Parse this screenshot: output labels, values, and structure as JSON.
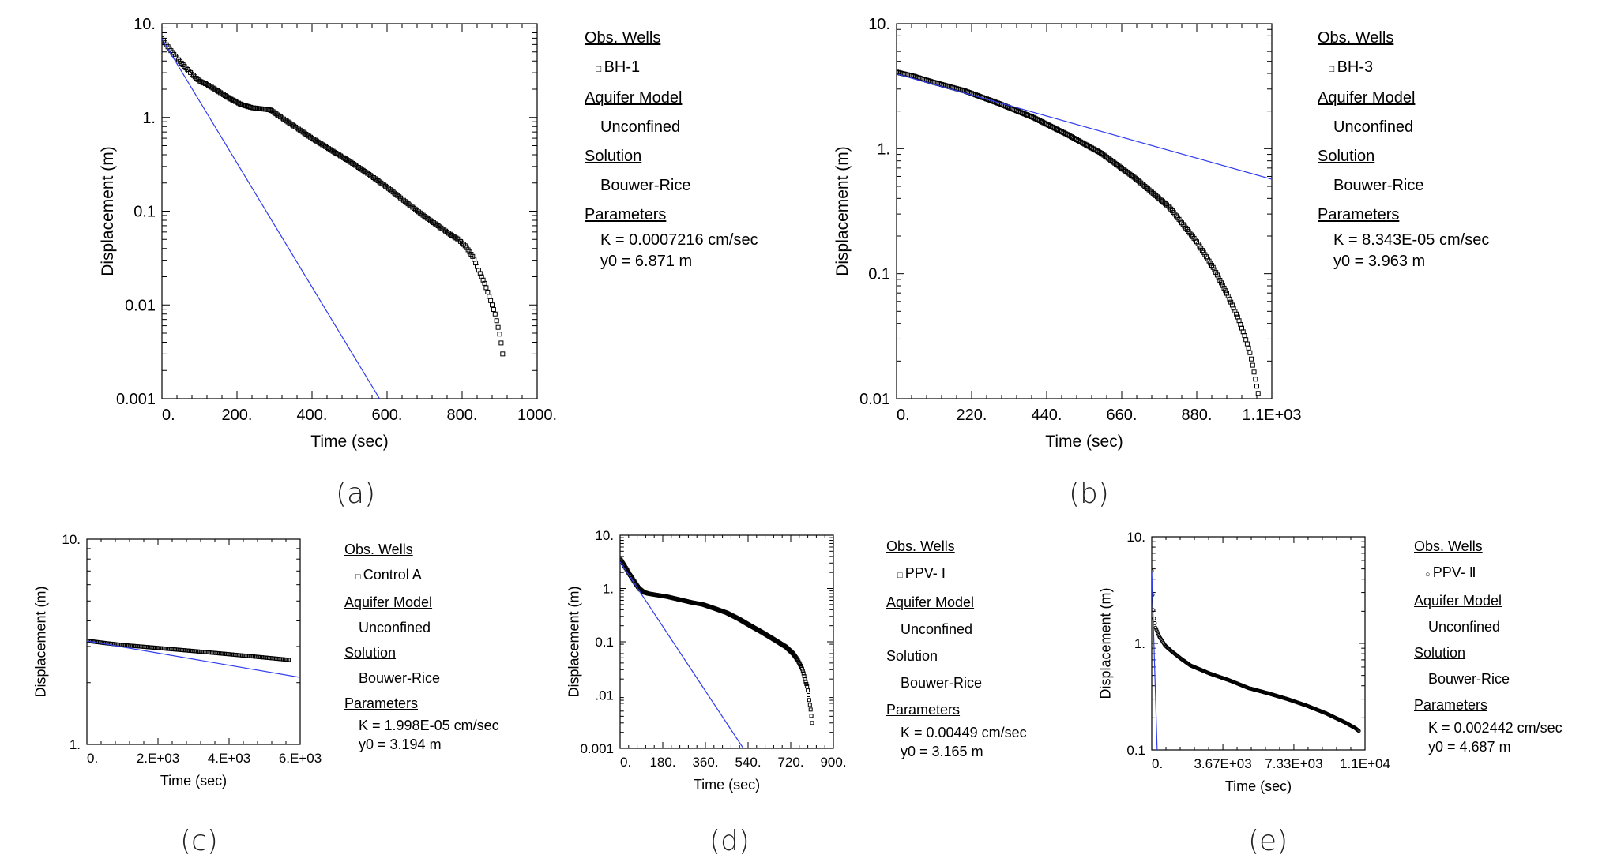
{
  "figure": {
    "captions": [
      "(a)",
      "(b)",
      "(c)",
      "(d)",
      "(e)"
    ]
  },
  "colors": {
    "fit_line": "#2f3cf0",
    "data": "#000000",
    "frame": "#000000"
  },
  "legend_labels": {
    "obs_wells": "Obs. Wells",
    "aquifer_model": "Aquifer Model",
    "solution": "Solution",
    "parameters": "Parameters"
  },
  "chart_data": [
    {
      "id": "a",
      "type": "scatter",
      "yscale": "log",
      "xlabel": "Time (sec)",
      "ylabel": "Displacement (m)",
      "xlim": [
        0,
        1000
      ],
      "ylim": [
        0.001,
        10
      ],
      "xticks": [
        0,
        200,
        400,
        600,
        800,
        1000
      ],
      "xtick_labels": [
        "0.",
        "200.",
        "400.",
        "600.",
        "800.",
        "1000."
      ],
      "yticks": [
        0.001,
        0.01,
        0.1,
        1,
        10
      ],
      "ytick_labels": [
        "0.001",
        "0.01",
        "0.1",
        "1.",
        "10."
      ],
      "observed": [
        [
          0,
          6.9
        ],
        [
          20,
          5.4
        ],
        [
          40,
          4.3
        ],
        [
          60,
          3.5
        ],
        [
          80,
          2.9
        ],
        [
          100,
          2.45
        ],
        [
          120,
          2.25
        ],
        [
          150,
          1.9
        ],
        [
          180,
          1.6
        ],
        [
          210,
          1.38
        ],
        [
          240,
          1.27
        ],
        [
          270,
          1.23
        ],
        [
          290,
          1.2
        ],
        [
          310,
          1.05
        ],
        [
          350,
          0.82
        ],
        [
          400,
          0.6
        ],
        [
          450,
          0.45
        ],
        [
          500,
          0.34
        ],
        [
          550,
          0.25
        ],
        [
          600,
          0.18
        ],
        [
          650,
          0.125
        ],
        [
          700,
          0.088
        ],
        [
          740,
          0.068
        ],
        [
          770,
          0.056
        ],
        [
          790,
          0.05
        ],
        [
          810,
          0.042
        ],
        [
          830,
          0.032
        ],
        [
          845,
          0.023
        ],
        [
          860,
          0.017
        ],
        [
          870,
          0.013
        ],
        [
          880,
          0.01
        ],
        [
          888,
          0.008
        ],
        [
          895,
          0.006
        ],
        [
          902,
          0.0045
        ],
        [
          908,
          0.003
        ]
      ],
      "fit_line": [
        [
          0,
          6.871
        ],
        [
          580,
          0.001
        ]
      ],
      "legend": {
        "obs_wells": "BH-1",
        "aquifer_model": "Unconfined",
        "solution": "Bouwer-Rice",
        "param_k": "K  = 0.0007216 cm/sec",
        "param_y0": "y0 = 6.871 m"
      }
    },
    {
      "id": "b",
      "type": "scatter",
      "yscale": "log",
      "xlabel": "Time (sec)",
      "ylabel": "Displacement (m)",
      "xlim": [
        0,
        1100
      ],
      "ylim": [
        0.01,
        10
      ],
      "xticks": [
        0,
        220,
        440,
        660,
        880,
        1100
      ],
      "xtick_labels": [
        "0.",
        "220.",
        "440.",
        "660.",
        "880.",
        "1.1E+03"
      ],
      "yticks": [
        0.01,
        0.1,
        1,
        10
      ],
      "ytick_labels": [
        "0.01",
        "0.1",
        "1.",
        "10."
      ],
      "observed": [
        [
          0,
          4.1
        ],
        [
          50,
          3.8
        ],
        [
          100,
          3.45
        ],
        [
          200,
          2.9
        ],
        [
          300,
          2.3
        ],
        [
          400,
          1.78
        ],
        [
          500,
          1.3
        ],
        [
          600,
          0.92
        ],
        [
          700,
          0.58
        ],
        [
          800,
          0.34
        ],
        [
          880,
          0.18
        ],
        [
          930,
          0.11
        ],
        [
          970,
          0.068
        ],
        [
          1000,
          0.045
        ],
        [
          1020,
          0.032
        ],
        [
          1035,
          0.024
        ],
        [
          1045,
          0.018
        ],
        [
          1055,
          0.013
        ],
        [
          1063,
          0.01
        ]
      ],
      "fit_line": [
        [
          0,
          3.963
        ],
        [
          1100,
          0.57
        ]
      ],
      "legend": {
        "obs_wells": "BH-3",
        "aquifer_model": "Unconfined",
        "solution": "Bouwer-Rice",
        "param_k": "K  = 8.343E-05 cm/sec",
        "param_y0": "y0 = 3.963 m"
      }
    },
    {
      "id": "c",
      "type": "scatter",
      "yscale": "log",
      "xlabel": "Time (sec)",
      "ylabel": "Displacement (m)",
      "xlim": [
        0,
        6000
      ],
      "ylim": [
        1,
        10
      ],
      "xticks": [
        0,
        2000,
        4000,
        6000
      ],
      "xtick_labels": [
        "0.",
        "2.E+03",
        "4.E+03",
        "6.E+03"
      ],
      "yticks": [
        1,
        10
      ],
      "ytick_labels": [
        "1.",
        "10."
      ],
      "observed": [
        [
          0,
          3.2
        ],
        [
          500,
          3.12
        ],
        [
          1000,
          3.05
        ],
        [
          2000,
          2.95
        ],
        [
          3000,
          2.85
        ],
        [
          4000,
          2.75
        ],
        [
          5000,
          2.65
        ],
        [
          5700,
          2.58
        ]
      ],
      "fit_line": [
        [
          0,
          3.194
        ],
        [
          6000,
          2.12
        ]
      ],
      "legend": {
        "obs_wells": "Control A",
        "aquifer_model": "Unconfined",
        "solution": "Bouwer-Rice",
        "param_k": "K  = 1.998E-05 cm/sec",
        "param_y0": "y0 = 3.194 m"
      }
    },
    {
      "id": "d",
      "type": "scatter",
      "yscale": "log",
      "xlabel": "Time (sec)",
      "ylabel": "Displacement (m)",
      "xlim": [
        0,
        900
      ],
      "ylim": [
        0.001,
        10
      ],
      "xticks": [
        0,
        180,
        360,
        540,
        720,
        900
      ],
      "xtick_labels": [
        "0.",
        "180.",
        "360.",
        "540.",
        "720.",
        "900."
      ],
      "yticks": [
        0.001,
        0.01,
        0.1,
        1,
        10
      ],
      "ytick_labels": [
        "0.001",
        ".01",
        "0.1",
        "1.",
        "10."
      ],
      "observed": [
        [
          0,
          3.6
        ],
        [
          20,
          2.6
        ],
        [
          40,
          1.85
        ],
        [
          60,
          1.35
        ],
        [
          80,
          1.0
        ],
        [
          100,
          0.85
        ],
        [
          120,
          0.8
        ],
        [
          150,
          0.76
        ],
        [
          200,
          0.7
        ],
        [
          250,
          0.62
        ],
        [
          300,
          0.55
        ],
        [
          350,
          0.5
        ],
        [
          400,
          0.42
        ],
        [
          450,
          0.35
        ],
        [
          500,
          0.27
        ],
        [
          550,
          0.2
        ],
        [
          600,
          0.15
        ],
        [
          650,
          0.11
        ],
        [
          700,
          0.08
        ],
        [
          730,
          0.06
        ],
        [
          750,
          0.045
        ],
        [
          770,
          0.03
        ],
        [
          780,
          0.02
        ],
        [
          790,
          0.014
        ],
        [
          795,
          0.01
        ],
        [
          800,
          0.007
        ],
        [
          805,
          0.005
        ],
        [
          810,
          0.003
        ]
      ],
      "fit_line": [
        [
          0,
          3.165
        ],
        [
          520,
          0.001
        ]
      ],
      "legend": {
        "obs_wells": "PPV- Ⅰ",
        "aquifer_model": "Unconfined",
        "solution": "Bouwer-Rice",
        "param_k": "K  = 0.00449 cm/sec",
        "param_y0": "y0 = 3.165 m"
      }
    },
    {
      "id": "e",
      "type": "scatter",
      "yscale": "log",
      "xlabel": "Time (sec)",
      "ylabel": "Displacement (m)",
      "xlim": [
        0,
        11000
      ],
      "ylim": [
        0.1,
        10
      ],
      "xticks": [
        0,
        3670,
        7330,
        11000
      ],
      "xtick_labels": [
        "0.",
        "3.67E+03",
        "7.33E+03",
        "1.1E+04"
      ],
      "yticks": [
        0.1,
        1,
        10
      ],
      "ytick_labels": [
        "0.1",
        "1.",
        "10."
      ],
      "observed": [
        [
          0,
          4.8
        ],
        [
          50,
          2.5
        ],
        [
          100,
          1.8
        ],
        [
          200,
          1.4
        ],
        [
          400,
          1.15
        ],
        [
          700,
          0.95
        ],
        [
          1000,
          0.85
        ],
        [
          1500,
          0.72
        ],
        [
          2000,
          0.62
        ],
        [
          3000,
          0.52
        ],
        [
          4000,
          0.45
        ],
        [
          5000,
          0.38
        ],
        [
          6000,
          0.34
        ],
        [
          7000,
          0.3
        ],
        [
          8000,
          0.26
        ],
        [
          9000,
          0.22
        ],
        [
          10000,
          0.18
        ],
        [
          10500,
          0.16
        ],
        [
          10700,
          0.15
        ]
      ],
      "fit_line": [
        [
          0,
          4.687
        ],
        [
          280,
          0.1
        ]
      ],
      "legend": {
        "obs_wells": "PPV- Ⅱ",
        "aquifer_model": "Unconfined",
        "solution": "Bouwer-Rice",
        "param_k": "K  = 0.002442 cm/sec",
        "param_y0": "y0 = 4.687 m"
      }
    }
  ]
}
